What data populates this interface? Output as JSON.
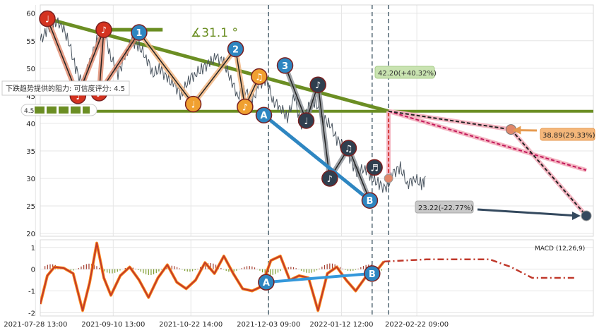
{
  "chart_data": [
    {
      "type": "line",
      "panel": "price",
      "x_ticks": [
        "2021-07-28 13:00",
        "2021-09-10 13:00",
        "2021-10-22 14:00",
        "2021-12-03 09:00",
        "2022-01-12 12:00",
        "2022-02-22 09:00"
      ],
      "y_ticks": [
        20,
        25,
        30,
        35,
        40,
        45,
        50,
        55,
        60
      ],
      "ylim": [
        19.5,
        61.5
      ],
      "x_range_days": [
        0,
        235
      ],
      "grid": true,
      "series": [
        {
          "role": "close",
          "x_days": [
            0,
            3,
            6,
            9,
            12,
            15,
            18,
            21,
            24,
            27,
            30,
            33,
            36,
            39,
            42,
            45,
            48,
            51,
            54,
            57,
            60,
            63,
            66,
            69,
            72,
            75,
            78,
            81,
            84,
            87,
            90,
            93,
            96,
            99,
            102,
            105,
            108,
            111,
            114,
            117,
            120,
            123,
            126,
            129,
            132,
            135,
            138,
            141,
            144,
            147,
            150,
            153,
            156,
            159,
            162,
            164
          ],
          "y": [
            55,
            57,
            58.5,
            58,
            55,
            50,
            47,
            51,
            55,
            57,
            52,
            49,
            52,
            55,
            54,
            52,
            49,
            50,
            48,
            47,
            45,
            48,
            49,
            50,
            51,
            52,
            51,
            48,
            45,
            46,
            44,
            47,
            48,
            44,
            43,
            41,
            45,
            39,
            43,
            44,
            41,
            40,
            37,
            36,
            33,
            31,
            32,
            30,
            29,
            28,
            31,
            32,
            29,
            30,
            29,
            30
          ]
        }
      ],
      "pattern_points": [
        {
          "label": "♩",
          "x_day": 3,
          "y": 59,
          "color": "#d43320"
        },
        {
          "label": "♩",
          "x_day": 16,
          "y": 45,
          "color": "#d43320"
        },
        {
          "label": "♪",
          "x_day": 27,
          "y": 57,
          "color": "#d43320"
        },
        {
          "label": "♪",
          "x_day": 25,
          "y": 45.5,
          "color": "#d43320"
        },
        {
          "label": "1",
          "x_day": 42,
          "y": 56.5,
          "color": "#2e86c1"
        },
        {
          "label": "♩",
          "x_day": 65,
          "y": 43.5,
          "color": "#f0a030"
        },
        {
          "label": "2",
          "x_day": 83,
          "y": 53.5,
          "color": "#2e86c1"
        },
        {
          "label": "♫",
          "x_day": 93,
          "y": 48.5,
          "color": "#f0a030"
        },
        {
          "label": "♪",
          "x_day": 87,
          "y": 43,
          "color": "#f0a030"
        },
        {
          "label": "A",
          "x_day": 95,
          "y": 41.5,
          "color": "#2e86c1"
        },
        {
          "label": "3",
          "x_day": 104,
          "y": 50.5,
          "color": "#2e86c1"
        },
        {
          "label": "♪",
          "x_day": 118,
          "y": 47,
          "color": "#2f3f4f"
        },
        {
          "label": "♩",
          "x_day": 113,
          "y": 40.5,
          "color": "#2f3f4f"
        },
        {
          "label": "♫",
          "x_day": 131,
          "y": 35.5,
          "color": "#2f3f4f"
        },
        {
          "label": "♪",
          "x_day": 123,
          "y": 30,
          "color": "#2f3f4f"
        },
        {
          "label": "♬",
          "x_day": 142,
          "y": 32,
          "color": "#2f3f4f"
        },
        {
          "label": "B",
          "x_day": 140,
          "y": 26,
          "color": "#2e86c1"
        }
      ],
      "annotations": {
        "angle": "∡31.1 °",
        "resistance_text": "下跌趋势提供的阻力: 可信度评分: 4.5",
        "rating_badge": "4.5",
        "target_up": "42.20(+40.32%)",
        "target_mid": "38.89(29.33%)",
        "target_down": "23.22(-22.77%)"
      }
    },
    {
      "type": "line",
      "panel": "macd",
      "title": "MACD (12,26,9)",
      "y_ticks": [
        -2,
        -1,
        0,
        1
      ],
      "ylim": [
        -2.15,
        1.35
      ],
      "x_ticks": [
        "2021-07-28 13:00",
        "2021-09-10 13:00",
        "2021-10-22 14:00",
        "2021-12-03 09:00",
        "2022-01-12 12:00",
        "2022-02-22 09:00"
      ],
      "series": [
        {
          "role": "macd",
          "x_days": [
            0,
            3,
            6,
            10,
            14,
            18,
            21,
            24,
            27,
            30,
            34,
            38,
            42,
            46,
            50,
            54,
            58,
            62,
            66,
            70,
            74,
            78,
            82,
            86,
            90,
            94,
            98,
            102,
            106,
            110,
            114,
            118,
            122,
            126,
            130,
            134,
            138,
            142,
            146
          ],
          "y": [
            -1.6,
            -0.3,
            0.1,
            0.05,
            -0.2,
            -1.9,
            -0.6,
            1.2,
            -0.4,
            -1.2,
            -0.3,
            0.1,
            -0.5,
            -1.3,
            -0.4,
            0.2,
            -0.6,
            -0.9,
            -0.5,
            0.3,
            -0.2,
            0.6,
            -0.2,
            -0.9,
            -1.0,
            -0.8,
            0.4,
            0.6,
            -0.5,
            -0.3,
            -0.4,
            -1.9,
            -0.2,
            0.1,
            -0.5,
            -1.0,
            -0.4,
            -0.2,
            0.35
          ]
        }
      ],
      "forecast": [
        0.35,
        0.4,
        0.45,
        0.45,
        0.45,
        0.45,
        0.1,
        -0.4,
        -0.4,
        -0.4
      ],
      "pattern_points": [
        {
          "label": "A",
          "x_day": 96,
          "y": -0.6
        },
        {
          "label": "B",
          "x_day": 141,
          "y": -0.2
        }
      ]
    }
  ]
}
